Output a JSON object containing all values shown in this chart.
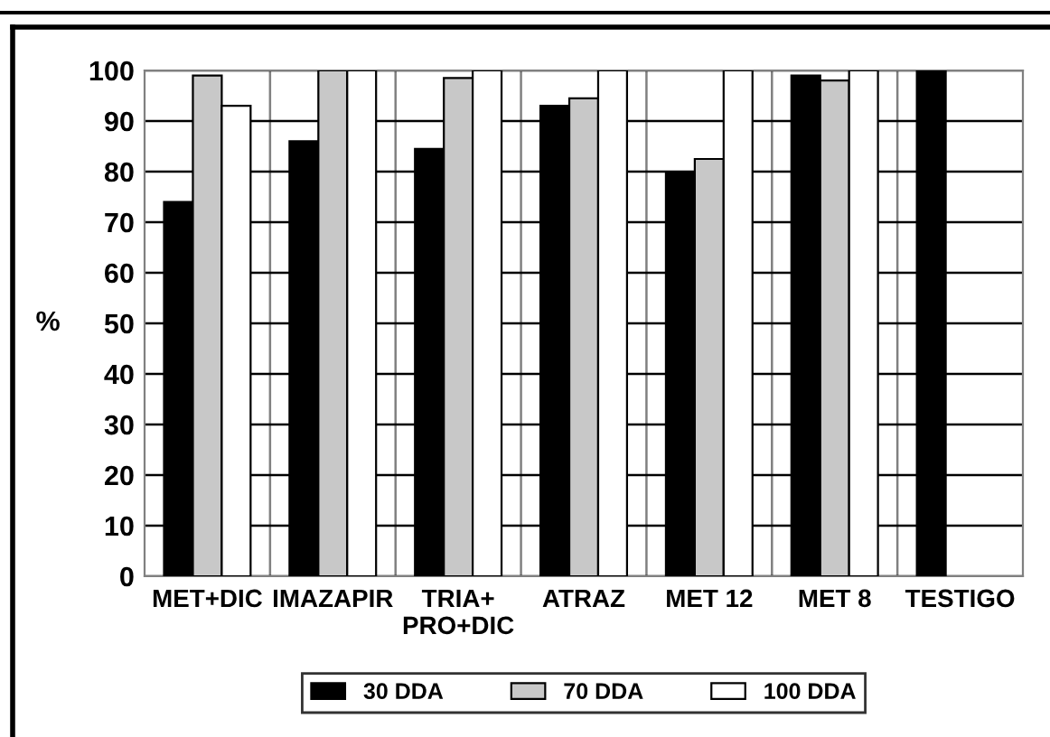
{
  "chart_data": {
    "type": "bar",
    "ylabel": "%",
    "categories": [
      "MET+DIC",
      "IMAZAPIR",
      "TRIA+\nPRO+DIC",
      "ATRAZ",
      "MET 12",
      "MET 8",
      "TESTIGO"
    ],
    "series": [
      {
        "name": "30 DDA",
        "color": "#000000",
        "values": [
          74,
          86,
          84.5,
          93,
          80,
          99,
          100
        ]
      },
      {
        "name": "70 DDA",
        "color": "#c8c8c8",
        "values": [
          99,
          100,
          98.5,
          94.5,
          82.5,
          98,
          null
        ]
      },
      {
        "name": "100 DDA",
        "color": "#ffffff",
        "values": [
          93,
          100,
          100,
          100,
          100,
          100,
          null
        ]
      }
    ],
    "ylim": [
      0,
      100
    ],
    "yticks": [
      0,
      10,
      20,
      30,
      40,
      50,
      60,
      70,
      80,
      90,
      100
    ],
    "grid": true,
    "legend": "bottom"
  }
}
